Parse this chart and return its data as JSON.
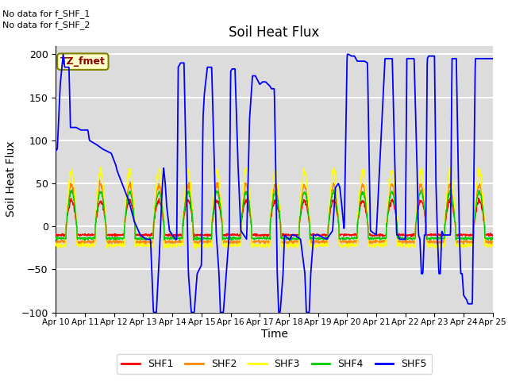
{
  "title": "Soil Heat Flux",
  "xlabel": "Time",
  "ylabel": "Soil Heat Flux",
  "ylim": [
    -100,
    210
  ],
  "yticks": [
    -100,
    -50,
    0,
    50,
    100,
    150,
    200
  ],
  "x_labels": [
    "Apr 10",
    "Apr 11",
    "Apr 12",
    "Apr 13",
    "Apr 14",
    "Apr 15",
    "Apr 16",
    "Apr 17",
    "Apr 18",
    "Apr 19",
    "Apr 20",
    "Apr 21",
    "Apr 22",
    "Apr 23",
    "Apr 24",
    "Apr 25"
  ],
  "no_data_text1": "No data for f_SHF_1",
  "no_data_text2": "No data for f_SHF_2",
  "tz_label": "TZ_fmet",
  "bg_color": "#dcdcdc",
  "grid_color": "white",
  "shf1_color": "#ff0000",
  "shf2_color": "#ff8800",
  "shf3_color": "#ffff00",
  "shf4_color": "#00cc00",
  "shf5_color": "#0000ff",
  "legend_entries": [
    "SHF1",
    "SHF2",
    "SHF3",
    "SHF4",
    "SHF5"
  ],
  "shf5_keypoints": [
    [
      0.0,
      88
    ],
    [
      0.05,
      90
    ],
    [
      0.15,
      165
    ],
    [
      0.25,
      200
    ],
    [
      0.3,
      185
    ],
    [
      0.45,
      185
    ],
    [
      0.5,
      115
    ],
    [
      0.7,
      115
    ],
    [
      0.85,
      112
    ],
    [
      1.1,
      112
    ],
    [
      1.15,
      100
    ],
    [
      1.4,
      95
    ],
    [
      1.6,
      90
    ],
    [
      1.9,
      85
    ],
    [
      2.05,
      72
    ],
    [
      2.1,
      65
    ],
    [
      2.5,
      30
    ],
    [
      2.7,
      5
    ],
    [
      2.9,
      -10
    ],
    [
      3.1,
      -15
    ],
    [
      3.25,
      -15
    ],
    [
      3.35,
      -100
    ],
    [
      3.45,
      -100
    ],
    [
      3.55,
      -35
    ],
    [
      3.65,
      45
    ],
    [
      3.7,
      68
    ],
    [
      3.75,
      52
    ],
    [
      3.8,
      25
    ],
    [
      3.9,
      -5
    ],
    [
      4.0,
      -10
    ],
    [
      4.05,
      -12
    ],
    [
      4.1,
      -15
    ],
    [
      4.15,
      -15
    ],
    [
      4.2,
      185
    ],
    [
      4.28,
      190
    ],
    [
      4.4,
      190
    ],
    [
      4.55,
      -55
    ],
    [
      4.65,
      -100
    ],
    [
      4.75,
      -100
    ],
    [
      4.85,
      -55
    ],
    [
      5.0,
      -45
    ],
    [
      5.05,
      125
    ],
    [
      5.1,
      155
    ],
    [
      5.2,
      185
    ],
    [
      5.35,
      185
    ],
    [
      5.5,
      -5
    ],
    [
      5.6,
      -55
    ],
    [
      5.65,
      -100
    ],
    [
      5.75,
      -100
    ],
    [
      5.85,
      -55
    ],
    [
      5.95,
      -10
    ],
    [
      6.0,
      180
    ],
    [
      6.05,
      183
    ],
    [
      6.15,
      183
    ],
    [
      6.25,
      75
    ],
    [
      6.35,
      -5
    ],
    [
      6.55,
      -15
    ],
    [
      6.65,
      125
    ],
    [
      6.75,
      175
    ],
    [
      6.85,
      175
    ],
    [
      7.0,
      165
    ],
    [
      7.1,
      168
    ],
    [
      7.2,
      168
    ],
    [
      7.35,
      163
    ],
    [
      7.4,
      160
    ],
    [
      7.5,
      160
    ],
    [
      7.55,
      65
    ],
    [
      7.6,
      -55
    ],
    [
      7.65,
      -100
    ],
    [
      7.7,
      -100
    ],
    [
      7.8,
      -55
    ],
    [
      7.85,
      -10
    ],
    [
      8.0,
      -15
    ],
    [
      8.05,
      -15
    ],
    [
      8.1,
      -10
    ],
    [
      8.2,
      -10
    ],
    [
      8.4,
      -15
    ],
    [
      8.55,
      -55
    ],
    [
      8.6,
      -100
    ],
    [
      8.7,
      -100
    ],
    [
      8.75,
      -55
    ],
    [
      8.85,
      -10
    ],
    [
      9.0,
      -10
    ],
    [
      9.3,
      -15
    ],
    [
      9.5,
      -5
    ],
    [
      9.6,
      45
    ],
    [
      9.7,
      50
    ],
    [
      9.75,
      45
    ],
    [
      9.8,
      30
    ],
    [
      9.9,
      -5
    ],
    [
      10.0,
      200
    ],
    [
      10.05,
      200
    ],
    [
      10.15,
      198
    ],
    [
      10.25,
      198
    ],
    [
      10.35,
      192
    ],
    [
      10.5,
      192
    ],
    [
      10.6,
      192
    ],
    [
      10.7,
      190
    ],
    [
      10.75,
      85
    ],
    [
      10.8,
      -5
    ],
    [
      11.0,
      -10
    ],
    [
      11.3,
      195
    ],
    [
      11.35,
      195
    ],
    [
      11.55,
      195
    ],
    [
      11.65,
      50
    ],
    [
      11.7,
      -10
    ],
    [
      11.75,
      -10
    ],
    [
      11.8,
      -15
    ],
    [
      12.0,
      -15
    ],
    [
      12.05,
      195
    ],
    [
      12.1,
      195
    ],
    [
      12.3,
      195
    ],
    [
      12.4,
      70
    ],
    [
      12.45,
      -10
    ],
    [
      12.5,
      -15
    ],
    [
      12.55,
      -55
    ],
    [
      12.6,
      -55
    ],
    [
      12.65,
      -10
    ],
    [
      12.7,
      -10
    ],
    [
      12.75,
      195
    ],
    [
      12.8,
      198
    ],
    [
      12.9,
      198
    ],
    [
      13.0,
      198
    ],
    [
      13.05,
      50
    ],
    [
      13.1,
      -10
    ],
    [
      13.15,
      -55
    ],
    [
      13.2,
      -55
    ],
    [
      13.25,
      -5
    ],
    [
      13.3,
      -10
    ],
    [
      13.55,
      -10
    ],
    [
      13.6,
      195
    ],
    [
      13.65,
      195
    ],
    [
      13.75,
      195
    ],
    [
      13.85,
      -5
    ],
    [
      13.9,
      -55
    ],
    [
      13.95,
      -55
    ],
    [
      14.0,
      -80
    ],
    [
      14.1,
      -85
    ],
    [
      14.15,
      -90
    ],
    [
      14.2,
      -90
    ],
    [
      14.3,
      -90
    ],
    [
      14.35,
      50
    ],
    [
      14.4,
      195
    ],
    [
      14.45,
      195
    ],
    [
      14.55,
      195
    ],
    [
      14.7,
      195
    ],
    [
      14.8,
      195
    ],
    [
      15.0,
      195
    ]
  ]
}
